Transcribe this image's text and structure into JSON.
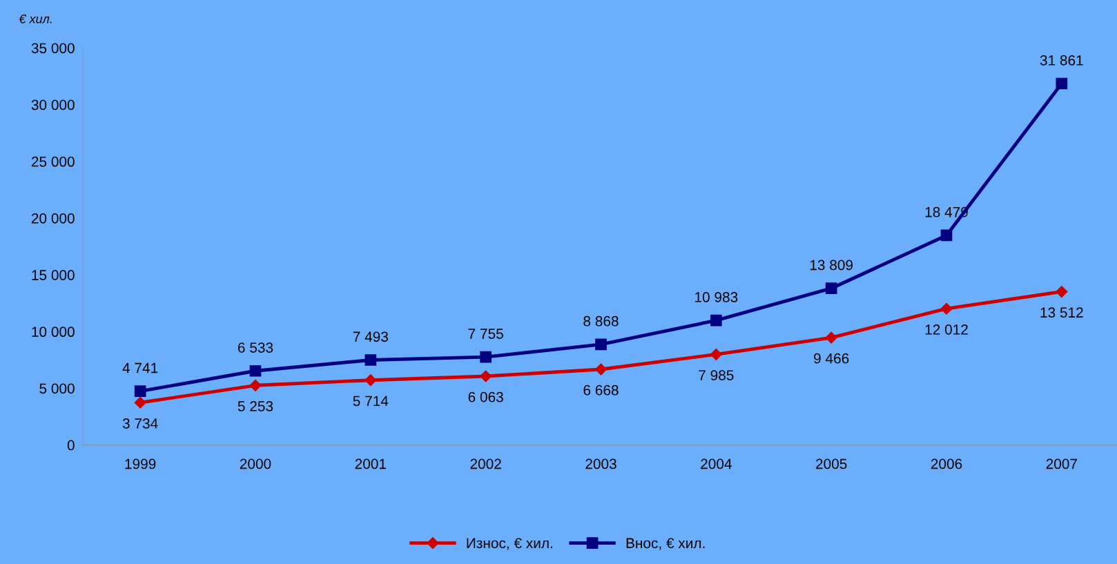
{
  "chart_data": {
    "type": "line",
    "ylabel": "€ хил.",
    "categories": [
      "1999",
      "2000",
      "2001",
      "2002",
      "2003",
      "2004",
      "2005",
      "2006",
      "2007"
    ],
    "series": [
      {
        "name": "Износ, € хил.",
        "color": "#cc0000",
        "marker": "diamond",
        "values": [
          3734,
          5253,
          5714,
          6063,
          6668,
          7985,
          9466,
          12012,
          13512
        ],
        "value_labels": [
          "3 734",
          "5 253",
          "5 714",
          "6 063",
          "6 668",
          "7 985",
          "9 466",
          "12 012",
          "13 512"
        ]
      },
      {
        "name": "Внос, € хил.",
        "color": "#000080",
        "marker": "square",
        "values": [
          4741,
          6533,
          7493,
          7755,
          8868,
          10983,
          13809,
          18479,
          31861
        ],
        "value_labels": [
          "4 741",
          "6 533",
          "7 493",
          "7 755",
          "8 868",
          "10 983",
          "13 809",
          "18 479",
          "31 861"
        ]
      }
    ],
    "ylim": [
      0,
      35000
    ],
    "yticks": [
      {
        "value": 0,
        "label": "0"
      },
      {
        "value": 5000,
        "label": "5 000"
      },
      {
        "value": 10000,
        "label": "10 000"
      },
      {
        "value": 15000,
        "label": "15 000"
      },
      {
        "value": 20000,
        "label": "20 000"
      },
      {
        "value": 25000,
        "label": "25 000"
      },
      {
        "value": 30000,
        "label": "30 000"
      },
      {
        "value": 35000,
        "label": "35 000"
      }
    ],
    "grid": false,
    "legend": "bottom",
    "line_style": "solid"
  }
}
